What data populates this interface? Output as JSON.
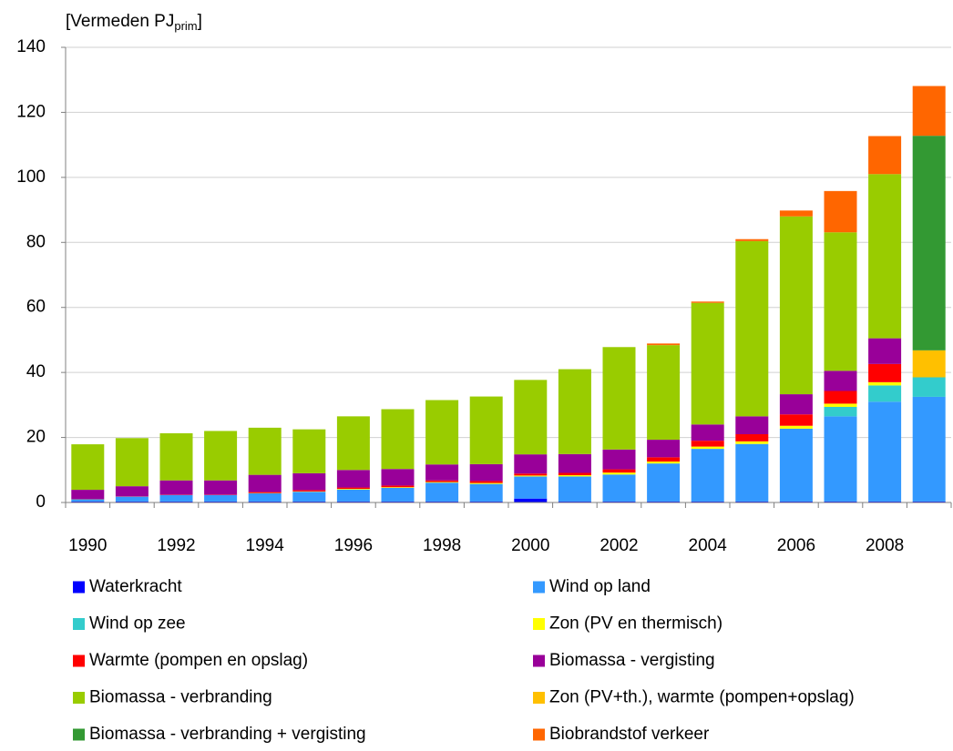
{
  "chart_data": {
    "type": "stacked_bar",
    "y_label": {
      "main": "[Vermeden PJ",
      "sub": "prim",
      "end": "]"
    },
    "categories": [
      "1990",
      null,
      "1992",
      null,
      "1994",
      null,
      "1996",
      null,
      "1998",
      null,
      "2000",
      null,
      "2002",
      null,
      "2004",
      null,
      "2006",
      null,
      "2008",
      null
    ],
    "ylim": [
      0,
      140
    ],
    "yticks": [
      0,
      20,
      40,
      60,
      80,
      100,
      120,
      140
    ],
    "grid": true,
    "series": [
      {
        "name": "Waterkracht",
        "color": "#0000ff",
        "values": [
          0.3,
          0.3,
          0.3,
          0.3,
          0.3,
          0.3,
          0.3,
          0.3,
          0.3,
          0.3,
          1.2,
          0.3,
          0.3,
          0.3,
          0.3,
          0.3,
          0.3,
          0.3,
          0.3,
          0.3
        ]
      },
      {
        "name": "Wind op land",
        "color": "#3399ff",
        "values": [
          0.7,
          1.5,
          2,
          2,
          2.5,
          3,
          3.7,
          4.2,
          5.8,
          5.4,
          6.8,
          7.7,
          8.3,
          11.7,
          16.2,
          17.7,
          22.4,
          26.2,
          30.7,
          32.2
        ]
      },
      {
        "name": "Wind op zee",
        "color": "#33cccc",
        "values": [
          null,
          null,
          null,
          null,
          null,
          null,
          null,
          null,
          null,
          null,
          null,
          null,
          null,
          null,
          null,
          null,
          null,
          2.9,
          5,
          6
        ]
      },
      {
        "name": "Zon (PV en thermisch)",
        "color": "#ffff00",
        "values": [
          null,
          null,
          null,
          null,
          0.1,
          0.1,
          0.2,
          0.2,
          0.2,
          0.3,
          0.3,
          0.4,
          0.6,
          0.6,
          0.7,
          0.8,
          0.9,
          1,
          1,
          null
        ]
      },
      {
        "name": "Warmte (pompen en opslag)",
        "color": "#ff0000",
        "values": [
          0.1,
          0.1,
          0.1,
          0.1,
          0.3,
          0.4,
          0.4,
          0.5,
          0.5,
          0.6,
          0.6,
          0.7,
          1,
          1.3,
          1.8,
          2.2,
          3.5,
          3.9,
          5.6,
          null
        ]
      },
      {
        "name": "Biomassa - vergisting",
        "color": "#990099",
        "values": [
          2.8,
          3.1,
          4.4,
          4.4,
          5.3,
          5.2,
          5.4,
          5.1,
          4.9,
          5.2,
          5.9,
          5.8,
          6.1,
          5.4,
          5,
          5.5,
          6.2,
          6.2,
          7.9,
          null
        ]
      },
      {
        "name": "Biomassa - verbranding",
        "color": "#99cc00",
        "values": [
          14,
          14.8,
          14.5,
          15.2,
          14.5,
          13.5,
          16.5,
          18.4,
          19.8,
          20.8,
          22.9,
          26.1,
          31.5,
          29.1,
          37.4,
          53.9,
          54.7,
          42.6,
          50.5,
          null
        ]
      },
      {
        "name": "Zon (PV+th.),  warmte (pompen+opslag)",
        "color": "#ffc000",
        "values": [
          null,
          null,
          null,
          null,
          null,
          null,
          null,
          null,
          null,
          null,
          null,
          null,
          null,
          null,
          null,
          null,
          null,
          null,
          null,
          8.3
        ]
      },
      {
        "name": "Biomassa - verbranding + vergisting",
        "color": "#339933",
        "values": [
          null,
          null,
          null,
          null,
          null,
          null,
          null,
          null,
          null,
          null,
          null,
          null,
          null,
          null,
          null,
          null,
          null,
          null,
          null,
          66
        ]
      },
      {
        "name": "Biobrandstof verkeer",
        "color": "#ff6600",
        "values": [
          null,
          null,
          null,
          null,
          null,
          null,
          null,
          null,
          null,
          null,
          null,
          null,
          null,
          0.5,
          0.4,
          0.6,
          1.8,
          12.7,
          11.7,
          15.3
        ]
      }
    ]
  }
}
